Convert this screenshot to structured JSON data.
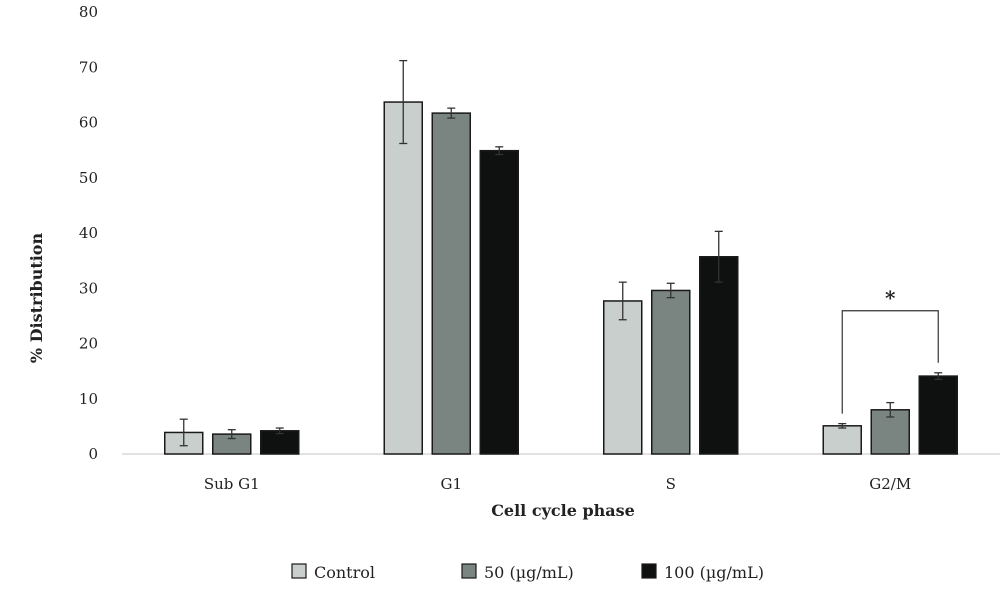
{
  "chart_data": {
    "type": "bar",
    "title": "",
    "xlabel": "Cell cycle phase",
    "ylabel": "% Distribution",
    "ylim": [
      0,
      80
    ],
    "yticks": [
      0,
      10,
      20,
      30,
      40,
      50,
      60,
      70,
      80
    ],
    "grid": false,
    "legend_position": "bottom",
    "categories": [
      "Sub G1",
      "G1",
      "S",
      "G2/M"
    ],
    "series": [
      {
        "name": "Control",
        "color": "#c8cfcc",
        "values": [
          3.9,
          63.7,
          27.7,
          5.1
        ],
        "errors": [
          2.4,
          7.5,
          3.4,
          0.4
        ]
      },
      {
        "name": "50 (µg/mL)",
        "color": "#7a8581",
        "values": [
          3.6,
          61.7,
          29.6,
          8.0
        ],
        "errors": [
          0.8,
          0.9,
          1.3,
          1.3
        ]
      },
      {
        "name": "100 (µg/mL)",
        "color": "#0e1110",
        "values": [
          4.2,
          54.9,
          35.7,
          14.1
        ],
        "errors": [
          0.5,
          0.7,
          4.6,
          0.6
        ]
      }
    ],
    "annotations": [
      {
        "text": "*",
        "category": "G2/M",
        "from_series": "Control",
        "to_series": "100 (µg/mL)"
      }
    ]
  }
}
